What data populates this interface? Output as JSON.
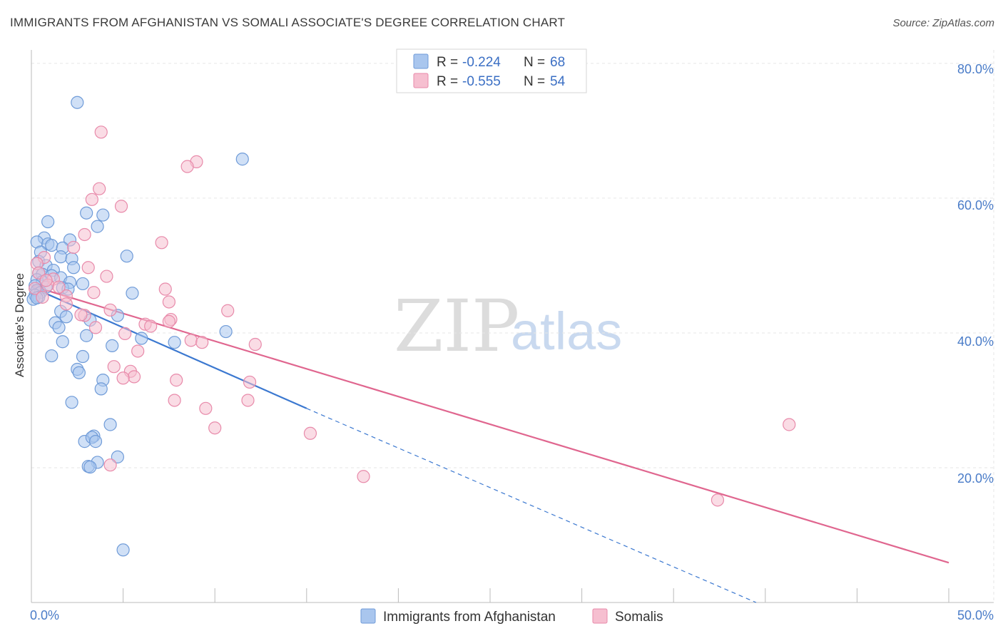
{
  "title": "IMMIGRANTS FROM AFGHANISTAN VS SOMALI ASSOCIATE'S DEGREE CORRELATION CHART",
  "source": "Source: ZipAtlas.com",
  "watermark": {
    "zip": "ZIP",
    "atlas": "atlas"
  },
  "colors": {
    "blue_fill": "#a9c6ee",
    "blue_stroke": "#6f9bd8",
    "blue_line": "#3b78d0",
    "pink_fill": "#f6bfd0",
    "pink_stroke": "#e88aaa",
    "pink_line": "#e0668f",
    "value_blue": "#3b6fc4"
  },
  "legend_top": [
    {
      "r_label": "R =",
      "r_value": "-0.224",
      "n_label": "N =",
      "n_value": "68"
    },
    {
      "r_label": "R =",
      "r_value": "-0.555",
      "n_label": "N =",
      "n_value": "54"
    }
  ],
  "chart_data": {
    "type": "scatter",
    "title": "IMMIGRANTS FROM AFGHANISTAN VS SOMALI ASSOCIATE'S DEGREE CORRELATION CHART",
    "xlabel": "",
    "ylabel": "Associate's Degree",
    "xlim": [
      0,
      50
    ],
    "ylim": [
      0,
      82
    ],
    "x_tick_labels": [
      "0.0%",
      "50.0%"
    ],
    "y_ticks": [
      20,
      40,
      60,
      80
    ],
    "y_tick_labels": [
      "20.0%",
      "40.0%",
      "60.0%",
      "80.0%"
    ],
    "grid": true,
    "legend_position": "bottom-center",
    "series": [
      {
        "name": "Immigrants from Afghanistan",
        "color": "blue",
        "points": [
          [
            2.5,
            74.2
          ],
          [
            11.5,
            65.8
          ],
          [
            3,
            57.8
          ],
          [
            3.9,
            57.5
          ],
          [
            0.9,
            56.5
          ],
          [
            3.6,
            55.8
          ],
          [
            0.7,
            54.1
          ],
          [
            2.1,
            53.8
          ],
          [
            0.3,
            53.5
          ],
          [
            0.9,
            53.2
          ],
          [
            1.1,
            53
          ],
          [
            1.7,
            52.6
          ],
          [
            0.5,
            52
          ],
          [
            5.2,
            51.4
          ],
          [
            1.6,
            51.3
          ],
          [
            2.2,
            51
          ],
          [
            0.4,
            50.6
          ],
          [
            0.8,
            50
          ],
          [
            2.3,
            49.7
          ],
          [
            1.2,
            49.3
          ],
          [
            0.4,
            48.9
          ],
          [
            0.6,
            48.7
          ],
          [
            1.1,
            48.5
          ],
          [
            1.6,
            48.2
          ],
          [
            0.3,
            47.9
          ],
          [
            0.6,
            47.6
          ],
          [
            2.1,
            47.5
          ],
          [
            2.8,
            47.3
          ],
          [
            0.2,
            47
          ],
          [
            0.8,
            46.8
          ],
          [
            1.7,
            46.7
          ],
          [
            2,
            46.5
          ],
          [
            0.3,
            46.3
          ],
          [
            0.5,
            46
          ],
          [
            5.5,
            45.9
          ],
          [
            0.2,
            45.6
          ],
          [
            0.4,
            45.3
          ],
          [
            0.1,
            45
          ],
          [
            1.6,
            43.2
          ],
          [
            4.7,
            42.6
          ],
          [
            1.9,
            42.4
          ],
          [
            3.2,
            41.9
          ],
          [
            1.3,
            41.5
          ],
          [
            1.5,
            40.8
          ],
          [
            10.6,
            40.2
          ],
          [
            3,
            39.6
          ],
          [
            6,
            39.2
          ],
          [
            7.8,
            38.6
          ],
          [
            1.7,
            38.7
          ],
          [
            4.4,
            38.1
          ],
          [
            1.1,
            36.6
          ],
          [
            2.8,
            36.5
          ],
          [
            2.5,
            34.6
          ],
          [
            2.6,
            34.1
          ],
          [
            3.9,
            33
          ],
          [
            3.8,
            31.7
          ],
          [
            2.2,
            29.7
          ],
          [
            4.3,
            26.4
          ],
          [
            3.4,
            24.7
          ],
          [
            2.9,
            23.9
          ],
          [
            3.3,
            24.5
          ],
          [
            3.5,
            23.9
          ],
          [
            4.7,
            21.6
          ],
          [
            3.6,
            20.8
          ],
          [
            3.1,
            20.2
          ],
          [
            3.2,
            20.1
          ],
          [
            5,
            7.8
          ],
          [
            0.3,
            45.2
          ]
        ]
      },
      {
        "name": "Somalis",
        "color": "pink",
        "points": [
          [
            3.8,
            69.8
          ],
          [
            9,
            65.4
          ],
          [
            8.5,
            64.7
          ],
          [
            3.7,
            61.4
          ],
          [
            3.3,
            59.8
          ],
          [
            4.9,
            58.8
          ],
          [
            2.9,
            54.6
          ],
          [
            7.1,
            53.4
          ],
          [
            2.3,
            52.7
          ],
          [
            0.7,
            51.2
          ],
          [
            0.3,
            50.3
          ],
          [
            3.1,
            49.7
          ],
          [
            0.4,
            48.9
          ],
          [
            4.1,
            48.4
          ],
          [
            1.2,
            48
          ],
          [
            0.9,
            47.1
          ],
          [
            0.2,
            46.6
          ],
          [
            7.3,
            46.5
          ],
          [
            3.4,
            46
          ],
          [
            1.9,
            45.5
          ],
          [
            0.6,
            45.3
          ],
          [
            7.5,
            44.6
          ],
          [
            1.9,
            44.3
          ],
          [
            4.3,
            43.4
          ],
          [
            10.7,
            43.3
          ],
          [
            2.9,
            42.6
          ],
          [
            7.6,
            42
          ],
          [
            7.5,
            41.7
          ],
          [
            6.2,
            41.3
          ],
          [
            6.5,
            41
          ],
          [
            3.5,
            40.8
          ],
          [
            5.1,
            39.9
          ],
          [
            8.7,
            38.9
          ],
          [
            9.3,
            38.6
          ],
          [
            12.2,
            38.3
          ],
          [
            5.8,
            37.3
          ],
          [
            4.5,
            35
          ],
          [
            5.4,
            34.3
          ],
          [
            5.6,
            33.5
          ],
          [
            5,
            33.3
          ],
          [
            7.9,
            33
          ],
          [
            11.9,
            32.7
          ],
          [
            7.8,
            30
          ],
          [
            11.8,
            30
          ],
          [
            9.5,
            28.8
          ],
          [
            10,
            25.9
          ],
          [
            15.2,
            25.1
          ],
          [
            41.3,
            26.4
          ],
          [
            18.1,
            18.7
          ],
          [
            37.4,
            15.2
          ],
          [
            4.3,
            20.4
          ],
          [
            1.5,
            46.8
          ],
          [
            2.7,
            42.7
          ],
          [
            0.8,
            47.8
          ]
        ]
      }
    ],
    "trendlines": [
      {
        "series": "Immigrants from Afghanistan",
        "solid": [
          [
            0,
            46.8
          ],
          [
            15,
            28.8
          ]
        ],
        "dashed": [
          [
            15,
            28.8
          ],
          [
            39.5,
            0
          ]
        ]
      },
      {
        "series": "Somalis",
        "solid": [
          [
            0,
            47
          ],
          [
            50,
            5.9
          ]
        ]
      }
    ]
  }
}
